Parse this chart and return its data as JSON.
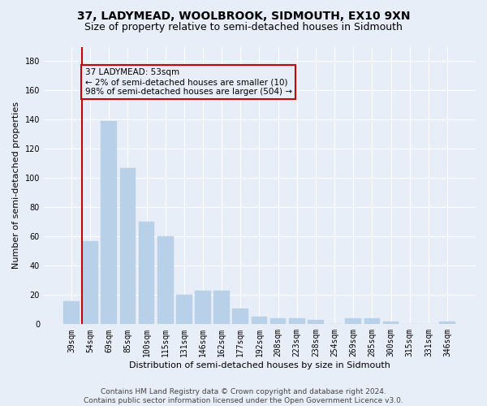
{
  "title": "37, LADYMEAD, WOOLBROOK, SIDMOUTH, EX10 9XN",
  "subtitle": "Size of property relative to semi-detached houses in Sidmouth",
  "xlabel": "Distribution of semi-detached houses by size in Sidmouth",
  "ylabel": "Number of semi-detached properties",
  "categories": [
    "39sqm",
    "54sqm",
    "69sqm",
    "85sqm",
    "100sqm",
    "115sqm",
    "131sqm",
    "146sqm",
    "162sqm",
    "177sqm",
    "192sqm",
    "208sqm",
    "223sqm",
    "238sqm",
    "254sqm",
    "269sqm",
    "285sqm",
    "300sqm",
    "315sqm",
    "331sqm",
    "346sqm"
  ],
  "values": [
    16,
    57,
    139,
    107,
    70,
    60,
    20,
    23,
    23,
    11,
    5,
    4,
    4,
    3,
    0,
    4,
    4,
    2,
    0,
    0,
    2
  ],
  "bar_color": "#b8d0e8",
  "bar_edge_color": "#b8d0e8",
  "highlight_color": "#cc0000",
  "ylim": [
    0,
    190
  ],
  "yticks": [
    0,
    20,
    40,
    60,
    80,
    100,
    120,
    140,
    160,
    180
  ],
  "annotation_title": "37 LADYMEAD: 53sqm",
  "annotation_line1": "← 2% of semi-detached houses are smaller (10)",
  "annotation_line2": "98% of semi-detached houses are larger (504) →",
  "annotation_box_color": "#cc0000",
  "background_color": "#e8eef8",
  "grid_color": "#ffffff",
  "footer_line1": "Contains HM Land Registry data © Crown copyright and database right 2024.",
  "footer_line2": "Contains public sector information licensed under the Open Government Licence v3.0.",
  "title_fontsize": 10,
  "subtitle_fontsize": 9,
  "axis_label_fontsize": 8,
  "tick_fontsize": 7,
  "annotation_fontsize": 7.5,
  "footer_fontsize": 6.5
}
